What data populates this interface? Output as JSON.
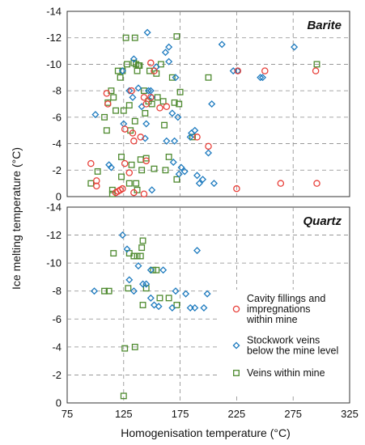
{
  "chart_data": {
    "type": "scatter",
    "xlabel": "Homogenisation temperature (°C)",
    "ylabel": "Ice melting temperature (°C)",
    "xlim": [
      75,
      325
    ],
    "ylim": [
      0,
      -14
    ],
    "grid": true,
    "x_ticks": [
      75,
      125,
      175,
      225,
      275,
      325
    ],
    "x_tick_labels": [
      "75",
      "125",
      "175",
      "225",
      "275",
      "325"
    ],
    "y_ticks": [
      0,
      -2,
      -4,
      -6,
      -8,
      -10,
      -12,
      -14
    ],
    "y_tick_labels": [
      "0",
      "-2",
      "-4",
      "-6",
      "-8",
      "-10",
      "-12",
      "-14"
    ],
    "legend": {
      "placement": "right of Quartz panel",
      "entries": [
        {
          "series": "cavity",
          "label_lines": [
            "Cavity fillings and",
            "impregnations",
            "within mine"
          ]
        },
        {
          "series": "stockwork",
          "label_lines": [
            "Stockwork veins",
            "below the mine level"
          ]
        },
        {
          "series": "veins",
          "label_lines": [
            "Veins within mine"
          ]
        }
      ]
    },
    "series_styles": {
      "cavity": {
        "marker": "circle",
        "color": "#e8403a"
      },
      "stockwork": {
        "marker": "diamond",
        "color": "#1e7bbf"
      },
      "veins": {
        "marker": "square",
        "color": "#4e8a2f"
      }
    },
    "panels": [
      {
        "title": "Barite",
        "series": {
          "cavity": [
            [
              96,
              2.5
            ],
            [
              101,
              1.2
            ],
            [
              101,
              0.8
            ],
            [
              110,
              7.8
            ],
            [
              111,
              7.0
            ],
            [
              118,
              0.3
            ],
            [
              120,
              0.4
            ],
            [
              122,
              0.5
            ],
            [
              124,
              0.6
            ],
            [
              126,
              5.1
            ],
            [
              126,
              2.5
            ],
            [
              130,
              1.8
            ],
            [
              132,
              8.0
            ],
            [
              133,
              4.8
            ],
            [
              134,
              4.2
            ],
            [
              134,
              0.3
            ],
            [
              140,
              4.5
            ],
            [
              143,
              7.5
            ],
            [
              143,
              0.2
            ],
            [
              145,
              2.7
            ],
            [
              145,
              7.0
            ],
            [
              149,
              10.1
            ],
            [
              149,
              7.5
            ],
            [
              152,
              9.5
            ],
            [
              157,
              6.7
            ],
            [
              163,
              6.8
            ],
            [
              190,
              4.5
            ],
            [
              200,
              3.8
            ],
            [
              225,
              0.6
            ],
            [
              226,
              9.5
            ],
            [
              250,
              9.5
            ],
            [
              264,
              1.0
            ],
            [
              295,
              9.5
            ],
            [
              296,
              1.0
            ]
          ],
          "stockwork": [
            [
              100,
              6.2
            ],
            [
              112,
              2.4
            ],
            [
              114,
              2.2
            ],
            [
              124,
              9.5
            ],
            [
              125,
              5.5
            ],
            [
              130,
              8.0
            ],
            [
              133,
              7.5
            ],
            [
              134,
              10.4
            ],
            [
              138,
              8.2
            ],
            [
              141,
              6.8
            ],
            [
              144,
              4.4
            ],
            [
              145,
              5.5
            ],
            [
              146,
              12.4
            ],
            [
              147,
              8.0
            ],
            [
              149,
              8.0
            ],
            [
              150,
              7.5
            ],
            [
              150,
              0.5
            ],
            [
              154,
              9.8
            ],
            [
              162,
              10.9
            ],
            [
              163,
              4.2
            ],
            [
              165,
              11.3
            ],
            [
              165,
              10.2
            ],
            [
              168,
              6.3
            ],
            [
              169,
              2.6
            ],
            [
              170,
              4.2
            ],
            [
              171,
              9.0
            ],
            [
              173,
              6.0
            ],
            [
              174,
              1.7
            ],
            [
              176,
              2.2
            ],
            [
              179,
              1.9
            ],
            [
              184,
              4.5
            ],
            [
              185,
              4.8
            ],
            [
              188,
              5.0
            ],
            [
              190,
              1.6
            ],
            [
              192,
              1.0
            ],
            [
              195,
              1.3
            ],
            [
              200,
              3.3
            ],
            [
              203,
              7.0
            ],
            [
              205,
              1.0
            ],
            [
              212,
              11.5
            ],
            [
              222,
              9.5
            ],
            [
              226,
              9.5
            ],
            [
              246,
              9.0
            ],
            [
              248,
              9.0
            ],
            [
              276,
              11.3
            ]
          ],
          "veins": [
            [
              96,
              1.0
            ],
            [
              102,
              1.9
            ],
            [
              108,
              6.0
            ],
            [
              110,
              5.0
            ],
            [
              111,
              7.1
            ],
            [
              114,
              8.0
            ],
            [
              115,
              0.5
            ],
            [
              115,
              0.2
            ],
            [
              116,
              7.5
            ],
            [
              118,
              6.5
            ],
            [
              120,
              9.5
            ],
            [
              122,
              9.0
            ],
            [
              123,
              3.0
            ],
            [
              123,
              1.5
            ],
            [
              124,
              9.5
            ],
            [
              125,
              6.5
            ],
            [
              127,
              12.0
            ],
            [
              128,
              10.0
            ],
            [
              130,
              6.9
            ],
            [
              130,
              1.0
            ],
            [
              131,
              5.0
            ],
            [
              132,
              2.4
            ],
            [
              134,
              10.1
            ],
            [
              135,
              12.0
            ],
            [
              135,
              5.7
            ],
            [
              136,
              10.0
            ],
            [
              136,
              1.0
            ],
            [
              137,
              9.5
            ],
            [
              137,
              0.5
            ],
            [
              138,
              9.9
            ],
            [
              139,
              9.9
            ],
            [
              140,
              2.8
            ],
            [
              141,
              2.0
            ],
            [
              143,
              8.0
            ],
            [
              144,
              6.3
            ],
            [
              145,
              2.9
            ],
            [
              147,
              7.2
            ],
            [
              148,
              9.5
            ],
            [
              150,
              7.0
            ],
            [
              152,
              2.1
            ],
            [
              154,
              9.3
            ],
            [
              155,
              7.5
            ],
            [
              158,
              10.0
            ],
            [
              160,
              7.2
            ],
            [
              161,
              5.4
            ],
            [
              162,
              2.0
            ],
            [
              165,
              3.0
            ],
            [
              168,
              9.0
            ],
            [
              170,
              7.1
            ],
            [
              172,
              1.3
            ],
            [
              172,
              12.1
            ],
            [
              174,
              7.0
            ],
            [
              175,
              7.9
            ],
            [
              186,
              4.5
            ],
            [
              200,
              9.0
            ],
            [
              296,
              10.0
            ]
          ]
        }
      },
      {
        "title": "Quartz",
        "series": {
          "cavity": [],
          "stockwork": [
            [
              99,
              8.0
            ],
            [
              124,
              12.0
            ],
            [
              128,
              11.0
            ],
            [
              130,
              8.8
            ],
            [
              134,
              8.0
            ],
            [
              138,
              9.8
            ],
            [
              142,
              8.5
            ],
            [
              145,
              8.5
            ],
            [
              149,
              9.5
            ],
            [
              149,
              7.5
            ],
            [
              152,
              7.0
            ],
            [
              156,
              6.9
            ],
            [
              160,
              9.5
            ],
            [
              168,
              6.8
            ],
            [
              171,
              8.0
            ],
            [
              180,
              7.8
            ],
            [
              184,
              6.8
            ],
            [
              188,
              6.8
            ],
            [
              190,
              10.9
            ],
            [
              196,
              6.8
            ],
            [
              199,
              7.8
            ]
          ],
          "veins": [
            [
              108,
              8.0
            ],
            [
              112,
              8.0
            ],
            [
              116,
              10.7
            ],
            [
              125,
              0.5
            ],
            [
              126,
              3.9
            ],
            [
              129,
              8.2
            ],
            [
              130,
              10.7
            ],
            [
              134,
              10.5
            ],
            [
              135,
              4.0
            ],
            [
              137,
              10.5
            ],
            [
              140,
              10.5
            ],
            [
              141,
              11.1
            ],
            [
              142,
              11.6
            ],
            [
              142,
              7.0
            ],
            [
              145,
              8.2
            ],
            [
              151,
              9.5
            ],
            [
              154,
              9.5
            ],
            [
              157,
              7.5
            ],
            [
              165,
              7.5
            ],
            [
              172,
              7.0
            ]
          ]
        }
      }
    ]
  }
}
